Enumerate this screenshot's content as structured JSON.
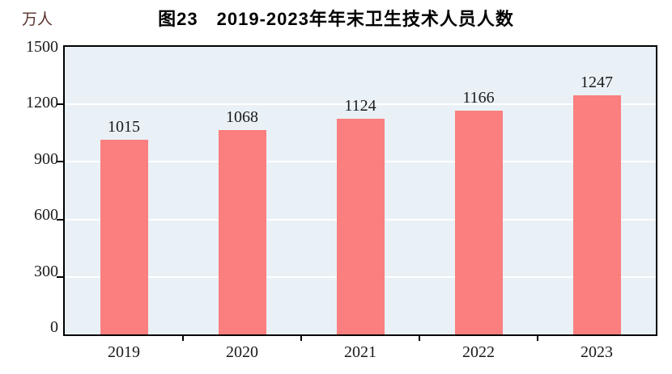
{
  "header": {
    "figure_number": "图23"
  },
  "chart_data": {
    "type": "bar",
    "title": "图23　2019-2023年年末卫生技术人员人数",
    "categories": [
      "2019",
      "2020",
      "2021",
      "2022",
      "2023"
    ],
    "values": [
      1015,
      1068,
      1124,
      1166,
      1247
    ],
    "xlabel": "",
    "ylabel": "万人",
    "ylim": [
      0,
      1500
    ],
    "yticks": [
      0,
      300,
      600,
      900,
      1200,
      1500
    ],
    "grid": true,
    "legend": "none",
    "data_labels": [
      "1015",
      "1068",
      "1124",
      "1166",
      "1247"
    ],
    "colors": {
      "bar": "#fa7f7e",
      "plot_bg": "#e9f1f7",
      "gridline": "#ffffff",
      "axis": "#000000",
      "title_text": "#000000",
      "unit_text": "#5a322d"
    }
  }
}
